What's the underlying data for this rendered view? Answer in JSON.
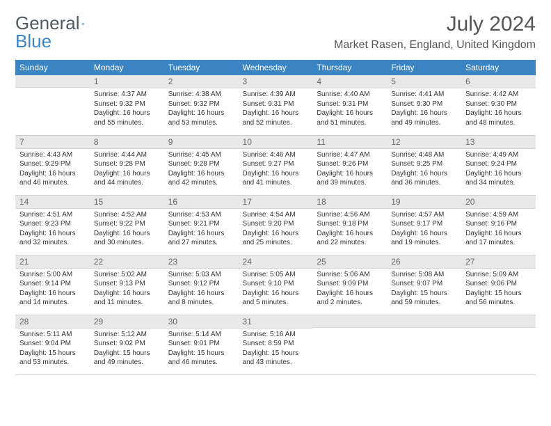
{
  "logo": {
    "text1": "General",
    "text2": "Blue"
  },
  "title": "July 2024",
  "location": "Market Rasen, England, United Kingdom",
  "colors": {
    "header_bg": "#3a84c4",
    "header_fg": "#ffffff",
    "daynum_bg": "#e8e8e8",
    "text": "#333333",
    "title": "#555555"
  },
  "weekdays": [
    "Sunday",
    "Monday",
    "Tuesday",
    "Wednesday",
    "Thursday",
    "Friday",
    "Saturday"
  ],
  "weeks": [
    [
      null,
      {
        "n": "1",
        "sr": "4:37 AM",
        "ss": "9:32 PM",
        "dl": "16 hours and 55 minutes."
      },
      {
        "n": "2",
        "sr": "4:38 AM",
        "ss": "9:32 PM",
        "dl": "16 hours and 53 minutes."
      },
      {
        "n": "3",
        "sr": "4:39 AM",
        "ss": "9:31 PM",
        "dl": "16 hours and 52 minutes."
      },
      {
        "n": "4",
        "sr": "4:40 AM",
        "ss": "9:31 PM",
        "dl": "16 hours and 51 minutes."
      },
      {
        "n": "5",
        "sr": "4:41 AM",
        "ss": "9:30 PM",
        "dl": "16 hours and 49 minutes."
      },
      {
        "n": "6",
        "sr": "4:42 AM",
        "ss": "9:30 PM",
        "dl": "16 hours and 48 minutes."
      }
    ],
    [
      {
        "n": "7",
        "sr": "4:43 AM",
        "ss": "9:29 PM",
        "dl": "16 hours and 46 minutes."
      },
      {
        "n": "8",
        "sr": "4:44 AM",
        "ss": "9:28 PM",
        "dl": "16 hours and 44 minutes."
      },
      {
        "n": "9",
        "sr": "4:45 AM",
        "ss": "9:28 PM",
        "dl": "16 hours and 42 minutes."
      },
      {
        "n": "10",
        "sr": "4:46 AM",
        "ss": "9:27 PM",
        "dl": "16 hours and 41 minutes."
      },
      {
        "n": "11",
        "sr": "4:47 AM",
        "ss": "9:26 PM",
        "dl": "16 hours and 39 minutes."
      },
      {
        "n": "12",
        "sr": "4:48 AM",
        "ss": "9:25 PM",
        "dl": "16 hours and 36 minutes."
      },
      {
        "n": "13",
        "sr": "4:49 AM",
        "ss": "9:24 PM",
        "dl": "16 hours and 34 minutes."
      }
    ],
    [
      {
        "n": "14",
        "sr": "4:51 AM",
        "ss": "9:23 PM",
        "dl": "16 hours and 32 minutes."
      },
      {
        "n": "15",
        "sr": "4:52 AM",
        "ss": "9:22 PM",
        "dl": "16 hours and 30 minutes."
      },
      {
        "n": "16",
        "sr": "4:53 AM",
        "ss": "9:21 PM",
        "dl": "16 hours and 27 minutes."
      },
      {
        "n": "17",
        "sr": "4:54 AM",
        "ss": "9:20 PM",
        "dl": "16 hours and 25 minutes."
      },
      {
        "n": "18",
        "sr": "4:56 AM",
        "ss": "9:18 PM",
        "dl": "16 hours and 22 minutes."
      },
      {
        "n": "19",
        "sr": "4:57 AM",
        "ss": "9:17 PM",
        "dl": "16 hours and 19 minutes."
      },
      {
        "n": "20",
        "sr": "4:59 AM",
        "ss": "9:16 PM",
        "dl": "16 hours and 17 minutes."
      }
    ],
    [
      {
        "n": "21",
        "sr": "5:00 AM",
        "ss": "9:14 PM",
        "dl": "16 hours and 14 minutes."
      },
      {
        "n": "22",
        "sr": "5:02 AM",
        "ss": "9:13 PM",
        "dl": "16 hours and 11 minutes."
      },
      {
        "n": "23",
        "sr": "5:03 AM",
        "ss": "9:12 PM",
        "dl": "16 hours and 8 minutes."
      },
      {
        "n": "24",
        "sr": "5:05 AM",
        "ss": "9:10 PM",
        "dl": "16 hours and 5 minutes."
      },
      {
        "n": "25",
        "sr": "5:06 AM",
        "ss": "9:09 PM",
        "dl": "16 hours and 2 minutes."
      },
      {
        "n": "26",
        "sr": "5:08 AM",
        "ss": "9:07 PM",
        "dl": "15 hours and 59 minutes."
      },
      {
        "n": "27",
        "sr": "5:09 AM",
        "ss": "9:06 PM",
        "dl": "15 hours and 56 minutes."
      }
    ],
    [
      {
        "n": "28",
        "sr": "5:11 AM",
        "ss": "9:04 PM",
        "dl": "15 hours and 53 minutes."
      },
      {
        "n": "29",
        "sr": "5:12 AM",
        "ss": "9:02 PM",
        "dl": "15 hours and 49 minutes."
      },
      {
        "n": "30",
        "sr": "5:14 AM",
        "ss": "9:01 PM",
        "dl": "15 hours and 46 minutes."
      },
      {
        "n": "31",
        "sr": "5:16 AM",
        "ss": "8:59 PM",
        "dl": "15 hours and 43 minutes."
      },
      null,
      null,
      null
    ]
  ],
  "labels": {
    "sunrise": "Sunrise: ",
    "sunset": "Sunset: ",
    "daylight": "Daylight: "
  }
}
